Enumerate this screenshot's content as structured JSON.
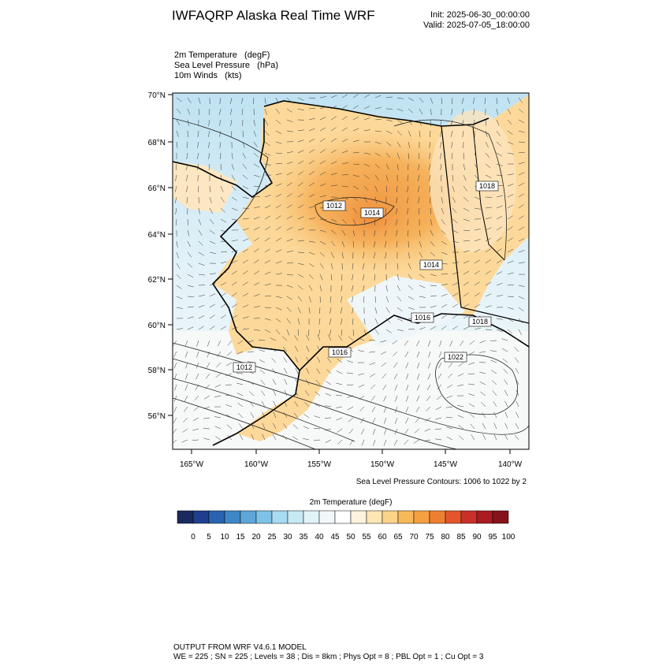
{
  "header": {
    "title": "IWFAQRP Alaska Real Time WRF",
    "init": "Init: 2025-06-30_00:00:00",
    "valid": "Valid: 2025-07-05_18:00:00"
  },
  "fields": [
    "2m Temperature   (degF)",
    "Sea Level Pressure   (hPa)",
    "10m Winds   (kts)"
  ],
  "map": {
    "lat_labels": [
      "70°N",
      "68°N",
      "66°N",
      "64°N",
      "62°N",
      "60°N",
      "58°N",
      "56°N"
    ],
    "lon_labels": [
      "165°W",
      "160°W",
      "155°W",
      "150°W",
      "145°W",
      "140°W"
    ],
    "isobar_labels": [
      "1012",
      "1014",
      "1014",
      "1018",
      "1016",
      "1018",
      "1016",
      "1012",
      "1022"
    ],
    "contour_note": "Sea Level Pressure Contours: 1006 to 1022 by 2"
  },
  "colorbar": {
    "title": "2m Temperature  (degF)",
    "labels": [
      "0",
      "5",
      "10",
      "15",
      "20",
      "25",
      "30",
      "35",
      "40",
      "45",
      "50",
      "55",
      "60",
      "65",
      "70",
      "75",
      "80",
      "85",
      "90",
      "95",
      "100"
    ],
    "colors": [
      "#1b2a5e",
      "#1f3f8c",
      "#2a63b0",
      "#3f86c6",
      "#5fa6d8",
      "#7ec2e8",
      "#a6dbf2",
      "#c7e9f6",
      "#e2f3f8",
      "#f2f8fa",
      "#ffffff",
      "#fff3dc",
      "#fde6b3",
      "#fbd38a",
      "#f8b95b",
      "#f5a041",
      "#ef7f30",
      "#e4552b",
      "#c9302a",
      "#aa1b22",
      "#861319"
    ]
  },
  "footer": {
    "line1": "OUTPUT FROM WRF V4.6.1 MODEL",
    "line2": "WE = 225 ; SN = 225 ; Levels = 38 ; Dis = 8km ; Phys Opt = 8 ; PBL Opt = 1 ; Cu Opt = 3"
  }
}
